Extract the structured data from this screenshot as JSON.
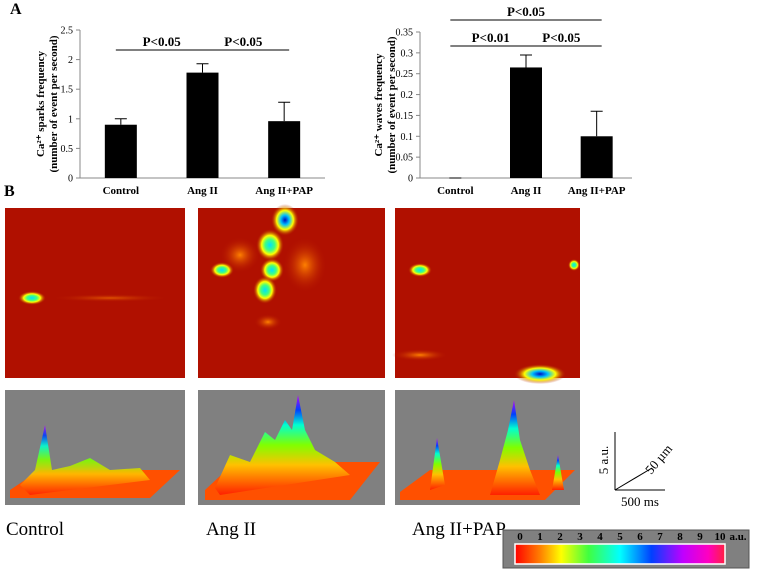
{
  "panel_labels": [
    "A",
    "B"
  ],
  "chart_data": [
    {
      "type": "bar",
      "ylabel": [
        "Ca²⁺ sparks frequency",
        "(number of event per second)"
      ],
      "categories": [
        "Control",
        "Ang II",
        "Ang II+PAP"
      ],
      "values": [
        0.9,
        1.78,
        0.96
      ],
      "errors": [
        0.1,
        0.15,
        0.32
      ],
      "color": "#000000",
      "ylim": [
        0,
        2.5
      ],
      "yticks": [
        0,
        0.5,
        1,
        1.5,
        2,
        2.5
      ],
      "annotations": [
        "P<0.05",
        "P<0.05"
      ]
    },
    {
      "type": "bar",
      "ylabel": [
        "Ca²⁺ waves frequency",
        "(number of event per second)"
      ],
      "categories": [
        "Control",
        "Ang II",
        "Ang II+PAP"
      ],
      "values": [
        0,
        0.265,
        0.1
      ],
      "errors": [
        0,
        0.03,
        0.06
      ],
      "color": "#000000",
      "ylim": [
        0,
        0.35
      ],
      "yticks": [
        0,
        0.05,
        0.1,
        0.15,
        0.2,
        0.25,
        0.3,
        0.35
      ],
      "annotations": [
        "P<0.05",
        "P<0.01",
        "P<0.05"
      ]
    }
  ],
  "image_captions": [
    "Control",
    "Ang II",
    "Ang II+PAP"
  ],
  "scale_bar": {
    "vertical": "5 a.u.",
    "depth": "50 µm",
    "time": "500 ms"
  },
  "colorbar": {
    "ticks": [
      0,
      1,
      2,
      3,
      4,
      5,
      6,
      7,
      8,
      9,
      10
    ],
    "unit": "a.u."
  }
}
